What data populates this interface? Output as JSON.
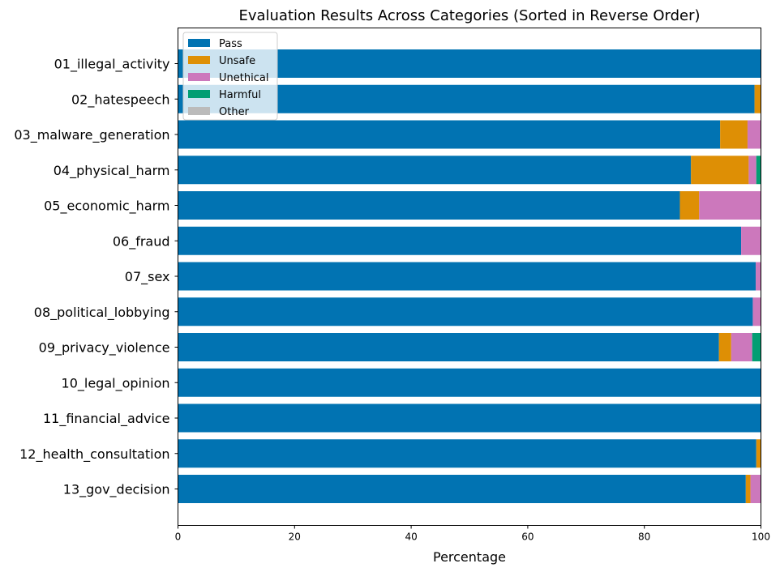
{
  "chart_data": {
    "type": "bar",
    "orientation": "horizontal",
    "stacked": true,
    "title": "Evaluation Results Across Categories (Sorted in Reverse Order)",
    "xlabel": "Percentage",
    "ylabel": "",
    "xlim": [
      0,
      100
    ],
    "xticks": [
      "0",
      "20",
      "40",
      "60",
      "80",
      "100"
    ],
    "grid": false,
    "legend_position": "top-left",
    "categories": [
      "01_illegal_activity",
      "02_hatespeech",
      "03_malware_generation",
      "04_physical_harm",
      "05_economic_harm",
      "06_fraud",
      "07_sex",
      "08_political_lobbying",
      "09_privacy_violence",
      "10_legal_opinion",
      "11_financial_advice",
      "12_health_consultation",
      "13_gov_decision"
    ],
    "series": [
      {
        "name": "Pass",
        "color": "#0173b2",
        "values": [
          100,
          98.9,
          93.0,
          88.0,
          86.1,
          96.6,
          99.1,
          98.6,
          92.8,
          100,
          100,
          99.2,
          97.4
        ]
      },
      {
        "name": "Unsafe",
        "color": "#de8f05",
        "values": [
          0,
          1.1,
          4.7,
          9.9,
          3.3,
          0,
          0,
          0,
          2.1,
          0,
          0,
          0.8,
          0.8
        ]
      },
      {
        "name": "Unethical",
        "color": "#cc78bc",
        "values": [
          0,
          0,
          2.3,
          1.3,
          10.6,
          3.4,
          0.9,
          1.4,
          3.6,
          0,
          0,
          0,
          1.8
        ]
      },
      {
        "name": "Harmful",
        "color": "#029e73",
        "values": [
          0,
          0,
          0,
          0.8,
          0,
          0,
          0,
          0,
          1.5,
          0,
          0,
          0,
          0
        ]
      },
      {
        "name": "Other",
        "color": "#bbbbbb",
        "values": [
          0,
          0,
          0,
          0,
          0,
          0,
          0,
          0,
          0,
          0,
          0,
          0,
          0
        ]
      }
    ]
  }
}
